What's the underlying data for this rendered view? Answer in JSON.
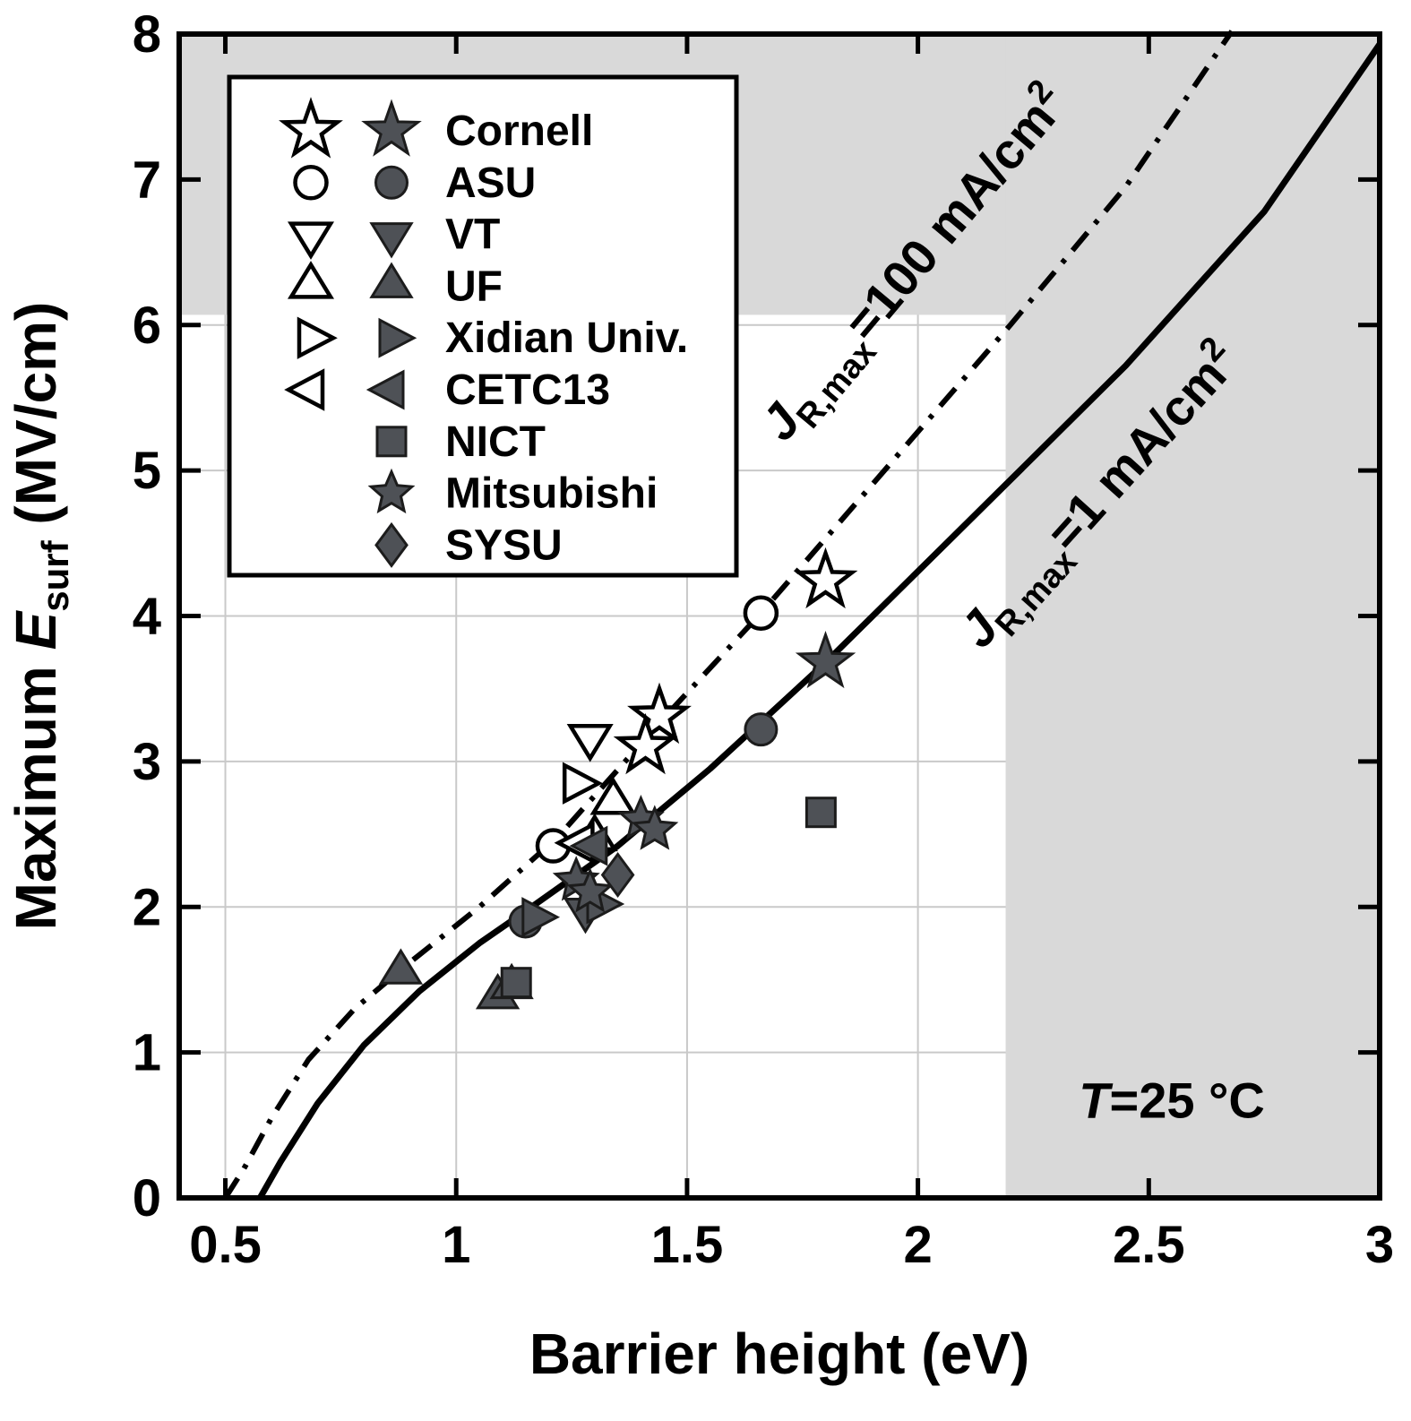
{
  "colors": {
    "background": "#ffffff",
    "shade": "#d9d9d9",
    "grid": "#c9c9c9",
    "line": "#000000",
    "marker_fill": "#4e5156",
    "marker_open_fill": "#ffffff",
    "marker_stroke": "#000000",
    "frame": "#000000",
    "legend_border": "#000000"
  },
  "chart_data": {
    "type": "scatter",
    "title": "",
    "xlabel": "Barrier height (eV)",
    "ylabel_parts": {
      "prefix": "Maximum ",
      "variable": "E",
      "subscript": "surf",
      "suffix": " (MV/cm)"
    },
    "xlim": [
      0.4,
      3.0
    ],
    "ylim": [
      0,
      8
    ],
    "xticks": [
      0.5,
      1,
      1.5,
      2,
      2.5,
      3
    ],
    "xtick_labels": [
      "0.5",
      "1",
      "1.5",
      "2",
      "2.5",
      "3"
    ],
    "yticks": [
      0,
      1,
      2,
      3,
      4,
      5,
      6,
      7,
      8
    ],
    "ytick_labels": [
      "0",
      "1",
      "2",
      "3",
      "4",
      "5",
      "6",
      "7",
      "8"
    ],
    "grid": true,
    "legend_position": "top-left",
    "shaded_regions": [
      {
        "x": [
          0.4,
          3.0
        ],
        "y": [
          6.07,
          8.0
        ]
      },
      {
        "x": [
          2.19,
          3.0
        ],
        "y": [
          0,
          8.0
        ]
      }
    ],
    "annotation": {
      "t": "T",
      "rest": "=25 °C",
      "x": 2.55,
      "y": 0.55
    },
    "lines": [
      {
        "id": "jr100",
        "style": "dashdot",
        "label_parts": {
          "j": "J",
          "sub": "R,max",
          "eq": "=100 mA/cm",
          "sup": "2"
        },
        "label_anchor": {
          "x": 2.02,
          "y": 6.35,
          "rotation": -50
        },
        "points": [
          [
            0.5,
            0
          ],
          [
            0.54,
            0.2
          ],
          [
            0.6,
            0.55
          ],
          [
            0.68,
            0.95
          ],
          [
            0.78,
            1.3
          ],
          [
            0.9,
            1.62
          ],
          [
            1.05,
            2.0
          ],
          [
            1.22,
            2.48
          ],
          [
            1.45,
            3.3
          ],
          [
            1.66,
            4.02
          ],
          [
            1.9,
            4.9
          ],
          [
            2.2,
            6.0
          ],
          [
            2.45,
            6.95
          ],
          [
            2.68,
            8.02
          ]
        ]
      },
      {
        "id": "jr1",
        "style": "solid",
        "label_parts": {
          "j": "J",
          "sub": "R,max",
          "eq": "=1 mA/cm",
          "sup": "2"
        },
        "label_anchor": {
          "x": 2.42,
          "y": 4.75,
          "rotation": -48
        },
        "points": [
          [
            0.575,
            0
          ],
          [
            0.62,
            0.25
          ],
          [
            0.7,
            0.65
          ],
          [
            0.8,
            1.05
          ],
          [
            0.92,
            1.42
          ],
          [
            1.05,
            1.75
          ],
          [
            1.15,
            1.97
          ],
          [
            1.35,
            2.42
          ],
          [
            1.55,
            2.95
          ],
          [
            1.8,
            3.68
          ],
          [
            2.1,
            4.62
          ],
          [
            2.45,
            5.72
          ],
          [
            2.75,
            6.78
          ],
          [
            3.0,
            7.93
          ]
        ]
      }
    ],
    "series": [
      {
        "name": "Cornell",
        "marker": "star",
        "open": [
          [
            1.8,
            4.24
          ],
          [
            1.44,
            3.31
          ],
          [
            1.41,
            3.1
          ]
        ],
        "filled": [
          [
            1.8,
            3.68
          ]
        ]
      },
      {
        "name": "ASU",
        "marker": "circle",
        "open": [
          [
            1.66,
            4.02
          ],
          [
            1.21,
            2.42
          ]
        ],
        "filled": [
          [
            1.66,
            3.22
          ],
          [
            1.15,
            1.9
          ]
        ]
      },
      {
        "name": "VT",
        "marker": "triangle-down",
        "open": [
          [
            1.29,
            3.17
          ]
        ],
        "filled": [
          [
            1.28,
            1.98
          ]
        ]
      },
      {
        "name": "UF",
        "marker": "triangle-up",
        "open": [
          [
            1.34,
            2.72
          ],
          [
            1.3,
            2.47
          ]
        ],
        "filled": [
          [
            0.88,
            1.55
          ],
          [
            1.09,
            1.38
          ],
          [
            1.12,
            1.45
          ]
        ]
      },
      {
        "name": "Xidian Univ.",
        "marker": "triangle-right",
        "open": [
          [
            1.26,
            2.85
          ]
        ],
        "filled": [
          [
            1.17,
            1.93
          ],
          [
            1.31,
            2.02
          ]
        ]
      },
      {
        "name": "CETC13",
        "marker": "triangle-left",
        "open": [
          [
            1.27,
            2.44
          ]
        ],
        "filled": [
          [
            1.3,
            2.42
          ]
        ]
      },
      {
        "name": "NICT",
        "marker": "square",
        "open": [],
        "filled": [
          [
            1.13,
            1.48
          ],
          [
            1.79,
            2.65
          ]
        ]
      },
      {
        "name": "Mitsubishi",
        "marker": "star-small",
        "open": [],
        "filled": [
          [
            1.4,
            2.6
          ],
          [
            1.43,
            2.53
          ],
          [
            1.26,
            2.18
          ],
          [
            1.29,
            2.1
          ]
        ]
      },
      {
        "name": "SYSU",
        "marker": "diamond",
        "open": [],
        "filled": [
          [
            1.35,
            2.22
          ]
        ]
      }
    ]
  }
}
